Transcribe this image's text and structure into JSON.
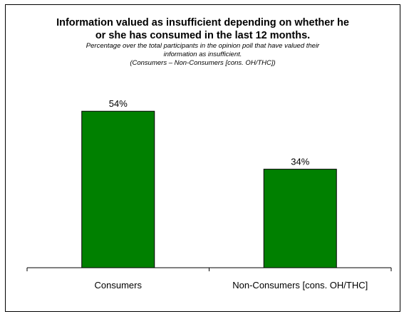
{
  "chart_data": {
    "type": "bar",
    "title_lines": [
      "Information valued as insufficient depending on whether he",
      "or she has consumed in the last 12 months."
    ],
    "subtitle_lines": [
      "Percentage over the total participants in the opinion poll that have valued their",
      "information as insufficient.",
      "(Consumers – Non-Consumers [cons. OH/THC])"
    ],
    "categories": [
      "Consumers",
      "Non-Consumers [cons. OH/THC]"
    ],
    "values": [
      54,
      34
    ],
    "data_labels": [
      "54%",
      "34%"
    ],
    "ylim": [
      0,
      100
    ],
    "bar_color": "#008000",
    "bar_outline_color": "#000000",
    "grid": false,
    "legend": "none"
  }
}
